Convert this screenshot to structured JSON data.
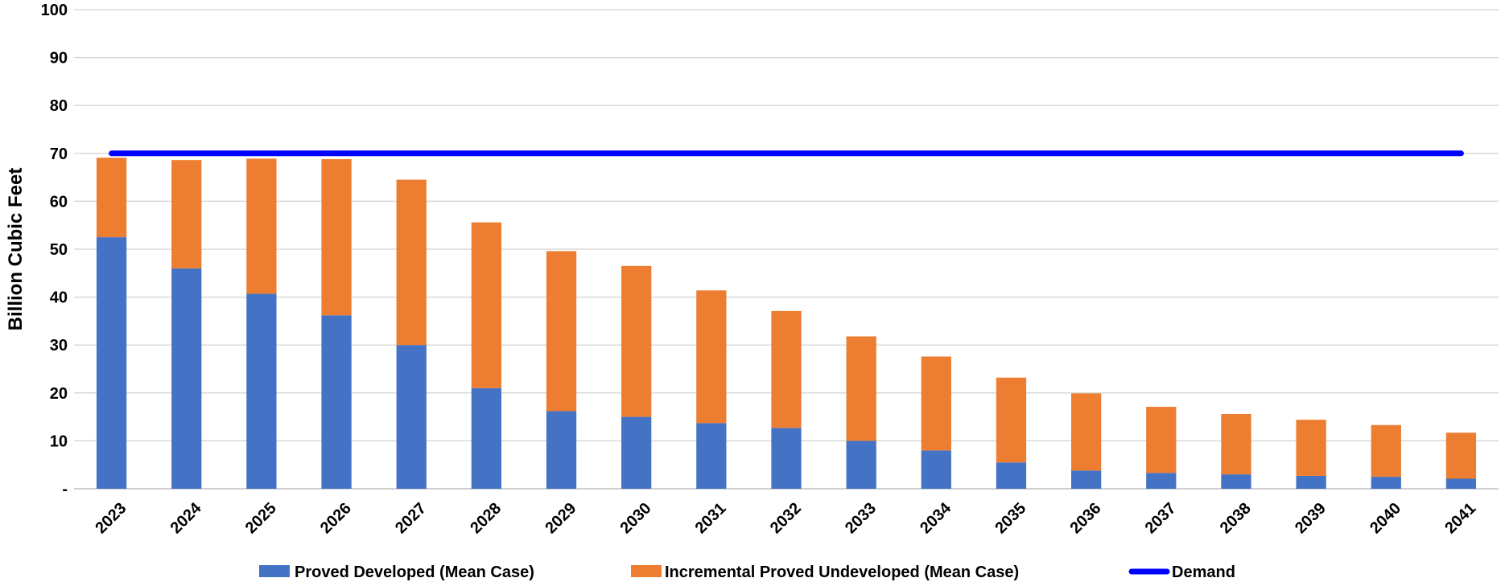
{
  "chart_data": {
    "type": "bar",
    "stacked": true,
    "ylabel": "Billion Cubic Feet",
    "xlabel": "",
    "ylim": [
      0,
      100
    ],
    "yticks": [
      0,
      10,
      20,
      30,
      40,
      50,
      60,
      70,
      80,
      90,
      100
    ],
    "ytick_labels": [
      "-",
      "10",
      "20",
      "30",
      "40",
      "50",
      "60",
      "70",
      "80",
      "90",
      "100"
    ],
    "grid": true,
    "legend_position": "bottom",
    "categories": [
      "2023",
      "2024",
      "2025",
      "2026",
      "2027",
      "2028",
      "2029",
      "2030",
      "2031",
      "2032",
      "2033",
      "2034",
      "2035",
      "2036",
      "2037",
      "2038",
      "2039",
      "2040",
      "2041"
    ],
    "series": [
      {
        "name": "Proved Developed (Mean Case)",
        "kind": "bar",
        "color": "#4472C4",
        "values": [
          52.5,
          46,
          40.7,
          36.2,
          30,
          21,
          16.2,
          15,
          13.7,
          12.7,
          10,
          8,
          5.5,
          3.8,
          3.3,
          3,
          2.7,
          2.5,
          2.1
        ]
      },
      {
        "name": "Incremental Proved Undeveloped (Mean Case)",
        "kind": "bar",
        "color": "#ED7D31",
        "values": [
          16.6,
          22.6,
          28.2,
          32.6,
          34.5,
          34.6,
          33.4,
          31.5,
          27.7,
          24.4,
          21.8,
          19.6,
          17.7,
          16.1,
          13.8,
          12.6,
          11.7,
          10.8,
          9.6
        ]
      },
      {
        "name": "Demand",
        "kind": "line",
        "color": "#0000FF",
        "values": [
          70,
          70,
          70,
          70,
          70,
          70,
          70,
          70,
          70,
          70,
          70,
          70,
          70,
          70,
          70,
          70,
          70,
          70,
          70
        ]
      }
    ]
  }
}
